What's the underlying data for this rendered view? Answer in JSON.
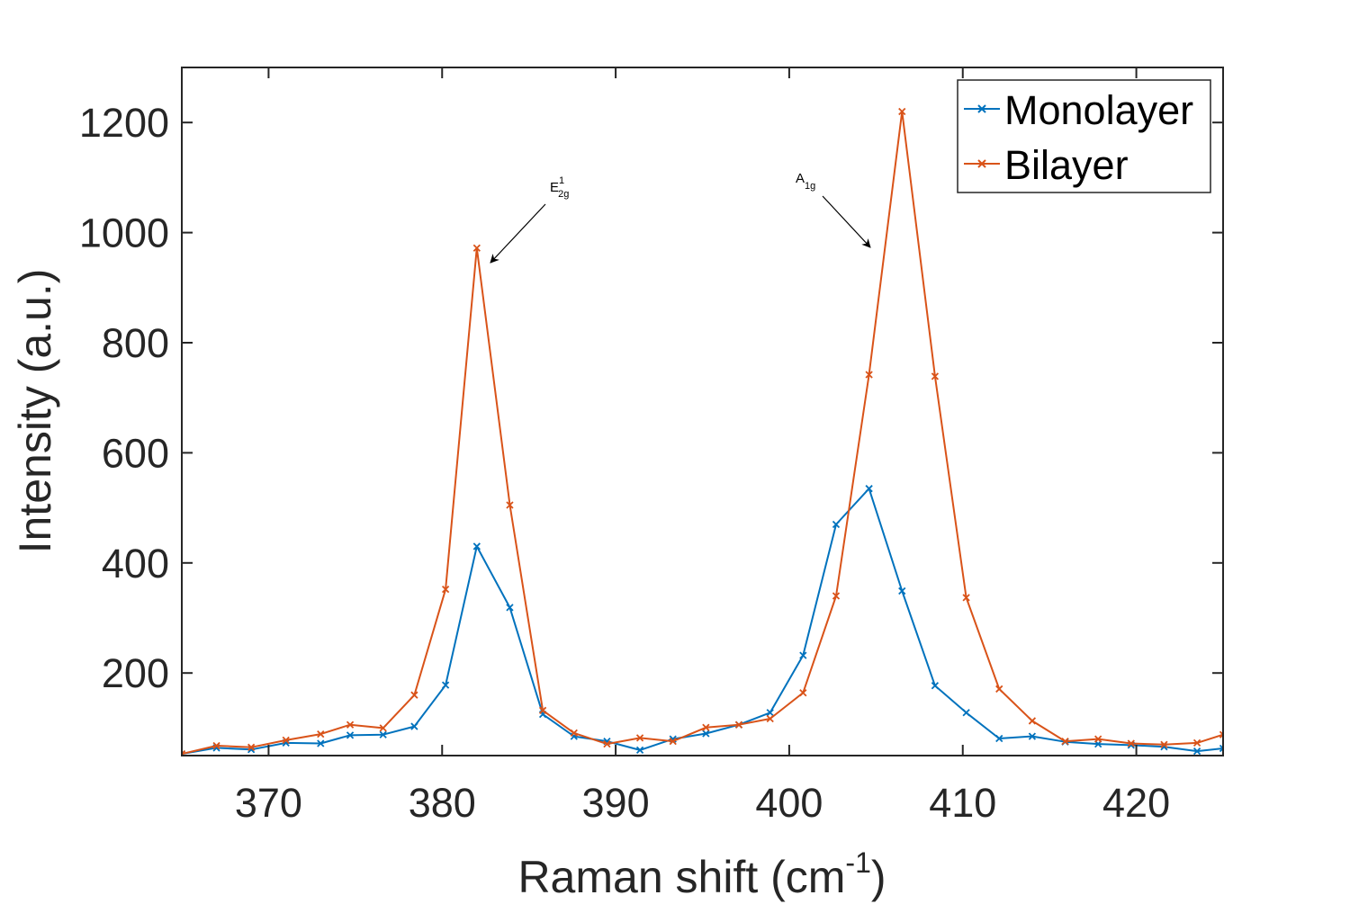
{
  "chart_data": {
    "type": "line",
    "title": "",
    "xlabel": "Raman shift (cm",
    "xlabel_superscript": "-1",
    "xlabel_suffix": ")",
    "ylabel": "Intensity (a.u.)",
    "xlim": [
      365,
      425
    ],
    "ylim": [
      50,
      1300
    ],
    "xticks": [
      370,
      380,
      390,
      400,
      410,
      420
    ],
    "yticks": [
      200,
      400,
      600,
      800,
      1000,
      1200
    ],
    "grid": false,
    "legend_position": "top-right",
    "series": [
      {
        "name": "Monolayer",
        "color": "#0072BD",
        "marker": "x",
        "x": [
          365.0,
          367.0,
          369.0,
          371.0,
          373.0,
          374.7,
          376.6,
          378.4,
          380.2,
          382.0,
          383.9,
          385.8,
          387.6,
          389.5,
          391.4,
          393.3,
          395.2,
          397.1,
          398.9,
          400.8,
          402.7,
          404.6,
          406.5,
          408.4,
          410.2,
          412.1,
          414.0,
          415.9,
          417.8,
          419.7,
          421.6,
          423.5,
          425.0
        ],
        "y": [
          53,
          64,
          61,
          73,
          72,
          87,
          88,
          103,
          178,
          430,
          319,
          125,
          85,
          76,
          60,
          80,
          90,
          106,
          128,
          232,
          470,
          535,
          349,
          177,
          128,
          81,
          85,
          75,
          71,
          69,
          66,
          58,
          63
        ]
      },
      {
        "name": "Bilayer",
        "color": "#D95319",
        "marker": "x",
        "x": [
          365.0,
          367.0,
          369.0,
          371.0,
          373.0,
          374.7,
          376.6,
          378.4,
          380.2,
          382.0,
          383.9,
          385.8,
          387.6,
          389.5,
          391.4,
          393.3,
          395.2,
          397.1,
          398.9,
          400.8,
          402.7,
          404.6,
          406.5,
          408.4,
          410.2,
          412.1,
          414.0,
          415.9,
          417.8,
          419.7,
          421.6,
          423.5,
          425.0
        ],
        "y": [
          53,
          68,
          65,
          78,
          89,
          106,
          100,
          160,
          352,
          972,
          505,
          132,
          91,
          71,
          82,
          76,
          101,
          106,
          117,
          164,
          340,
          742,
          1220,
          739,
          337,
          171,
          113,
          76,
          80,
          72,
          70,
          73,
          88
        ]
      }
    ],
    "annotations": [
      {
        "label": "E",
        "superscript": "1",
        "subscript": "2g",
        "target_x": 382.6,
        "target_y": 945
      },
      {
        "label": "A",
        "superscript": "",
        "subscript": "1g",
        "target_x": 404.7,
        "target_y": 1030
      }
    ]
  }
}
